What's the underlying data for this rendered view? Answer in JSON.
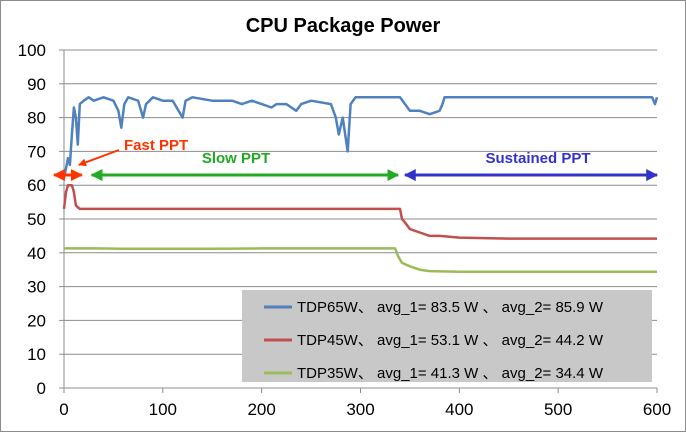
{
  "chart_data": {
    "type": "line",
    "title": "CPU Package Power",
    "xlabel": "",
    "ylabel": "",
    "xlim": [
      0,
      600
    ],
    "ylim": [
      0,
      100
    ],
    "x_ticks": [
      "0",
      "100",
      "200",
      "300",
      "400",
      "500",
      "600"
    ],
    "y_ticks": [
      "0",
      "10",
      "20",
      "30",
      "40",
      "50",
      "60",
      "70",
      "80",
      "90",
      "100"
    ],
    "grid": "horizontal",
    "legend_position": "bottom-right",
    "series": [
      {
        "name": "TDP65W、 avg_1= 83.5 W 、 avg_2= 85.9 W",
        "color": "#4f81bd",
        "points": [
          [
            0,
            62
          ],
          [
            2,
            65
          ],
          [
            4,
            68
          ],
          [
            6,
            66
          ],
          [
            8,
            75
          ],
          [
            10,
            83
          ],
          [
            12,
            80
          ],
          [
            14,
            72
          ],
          [
            16,
            84
          ],
          [
            20,
            85
          ],
          [
            25,
            86
          ],
          [
            30,
            85
          ],
          [
            40,
            86
          ],
          [
            50,
            85
          ],
          [
            55,
            82
          ],
          [
            58,
            77
          ],
          [
            61,
            84
          ],
          [
            65,
            86
          ],
          [
            75,
            85
          ],
          [
            80,
            80
          ],
          [
            83,
            84
          ],
          [
            90,
            86
          ],
          [
            100,
            85
          ],
          [
            110,
            85
          ],
          [
            120,
            80
          ],
          [
            123,
            85
          ],
          [
            130,
            86
          ],
          [
            150,
            85
          ],
          [
            170,
            85
          ],
          [
            180,
            84
          ],
          [
            190,
            85
          ],
          [
            200,
            84
          ],
          [
            210,
            83
          ],
          [
            215,
            84
          ],
          [
            225,
            84
          ],
          [
            235,
            82
          ],
          [
            240,
            84
          ],
          [
            250,
            85
          ],
          [
            270,
            84
          ],
          [
            275,
            80
          ],
          [
            278,
            75
          ],
          [
            282,
            80
          ],
          [
            285,
            74
          ],
          [
            287,
            70
          ],
          [
            290,
            84
          ],
          [
            295,
            86
          ],
          [
            310,
            86
          ],
          [
            320,
            86
          ],
          [
            330,
            86
          ],
          [
            340,
            86
          ],
          [
            345,
            84
          ],
          [
            350,
            82
          ],
          [
            360,
            82
          ],
          [
            370,
            81
          ],
          [
            380,
            82
          ],
          [
            383,
            84
          ],
          [
            385,
            86
          ],
          [
            400,
            86
          ],
          [
            420,
            86
          ],
          [
            440,
            86
          ],
          [
            460,
            86
          ],
          [
            480,
            86
          ],
          [
            500,
            86
          ],
          [
            520,
            86
          ],
          [
            540,
            86
          ],
          [
            560,
            86
          ],
          [
            580,
            86
          ],
          [
            595,
            86
          ],
          [
            598,
            84
          ],
          [
            600,
            86
          ]
        ]
      },
      {
        "name": "TDP45W、 avg_1= 53.1 W 、 avg_2= 44.2 W",
        "color": "#c0504d",
        "points": [
          [
            0,
            53
          ],
          [
            2,
            58
          ],
          [
            4,
            60
          ],
          [
            8,
            60
          ],
          [
            10,
            58
          ],
          [
            12,
            54
          ],
          [
            16,
            53
          ],
          [
            30,
            53
          ],
          [
            60,
            53
          ],
          [
            100,
            53
          ],
          [
            150,
            53
          ],
          [
            200,
            53
          ],
          [
            250,
            53
          ],
          [
            300,
            53
          ],
          [
            340,
            53
          ],
          [
            342,
            50
          ],
          [
            345,
            49
          ],
          [
            350,
            47
          ],
          [
            360,
            46
          ],
          [
            370,
            45
          ],
          [
            380,
            45
          ],
          [
            400,
            44.5
          ],
          [
            450,
            44.2
          ],
          [
            500,
            44.2
          ],
          [
            550,
            44.2
          ],
          [
            600,
            44.2
          ]
        ]
      },
      {
        "name": "TDP35W、 avg_1= 41.3 W 、 avg_2= 34.4 W",
        "color": "#9bbb59",
        "points": [
          [
            0,
            41.3
          ],
          [
            30,
            41.3
          ],
          [
            60,
            41.2
          ],
          [
            100,
            41.2
          ],
          [
            150,
            41.2
          ],
          [
            200,
            41.3
          ],
          [
            250,
            41.3
          ],
          [
            300,
            41.3
          ],
          [
            335,
            41.3
          ],
          [
            338,
            39
          ],
          [
            342,
            37
          ],
          [
            350,
            36
          ],
          [
            360,
            35
          ],
          [
            370,
            34.6
          ],
          [
            400,
            34.4
          ],
          [
            450,
            34.4
          ],
          [
            500,
            34.4
          ],
          [
            550,
            34.4
          ],
          [
            600,
            34.4
          ]
        ]
      }
    ],
    "annotations": [
      {
        "label": "Fast PPT",
        "color": "#ff3300",
        "x_range": [
          -10,
          18
        ],
        "y": 63
      },
      {
        "label": "Slow PPT",
        "color": "#22aa22",
        "x_range": [
          28,
          338
        ],
        "y": 63
      },
      {
        "label": "Sustained PPT",
        "color": "#3333cc",
        "x_range": [
          345,
          600
        ],
        "y": 63
      }
    ]
  }
}
